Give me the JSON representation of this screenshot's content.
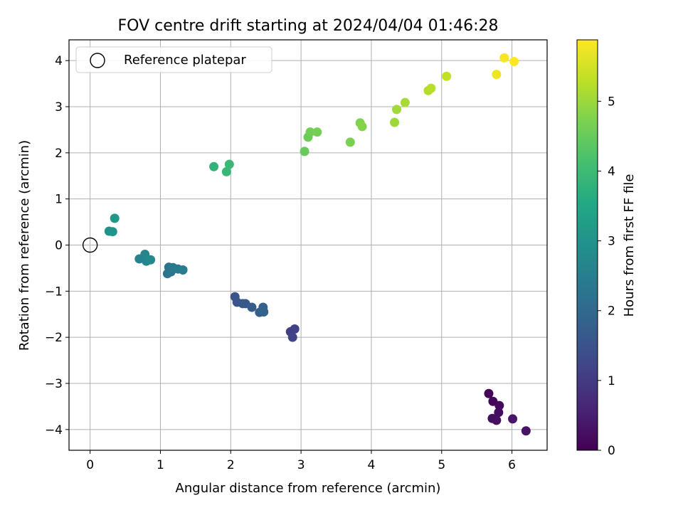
{
  "chart_data": {
    "type": "scatter",
    "title": "FOV centre drift starting at 2024/04/04 01:46:28",
    "xlabel": "Angular distance from reference (arcmin)",
    "ylabel": "Rotation from reference (arcmin)",
    "xlim": [
      -0.3,
      6.5
    ],
    "ylim": [
      -4.45,
      4.45
    ],
    "xticks": [
      0,
      1,
      2,
      3,
      4,
      5,
      6
    ],
    "yticks": [
      -4,
      -3,
      -2,
      -1,
      0,
      1,
      2,
      3,
      4
    ],
    "grid": true,
    "legend": {
      "position": "top-left",
      "entries": [
        "Reference platepar"
      ]
    },
    "reference_point": {
      "x": 0,
      "y": 0
    },
    "colorbar": {
      "label": "Hours from first FF file",
      "range": [
        0,
        5.88
      ],
      "ticks": [
        0,
        1,
        2,
        3,
        4,
        5
      ],
      "colormap": "viridis"
    },
    "points": [
      {
        "x": 5.67,
        "y": -3.22,
        "c": 0.05
      },
      {
        "x": 5.73,
        "y": -3.39,
        "c": 0.1
      },
      {
        "x": 5.82,
        "y": -3.48,
        "c": 0.15
      },
      {
        "x": 5.81,
        "y": -3.63,
        "c": 0.2
      },
      {
        "x": 5.72,
        "y": -3.76,
        "c": 0.22
      },
      {
        "x": 5.78,
        "y": -3.8,
        "c": 0.25
      },
      {
        "x": 6.01,
        "y": -3.77,
        "c": 0.35
      },
      {
        "x": 6.2,
        "y": -4.03,
        "c": 0.3
      },
      {
        "x": 2.85,
        "y": -1.88,
        "c": 1.1
      },
      {
        "x": 2.91,
        "y": -1.82,
        "c": 1.15
      },
      {
        "x": 2.88,
        "y": -2.0,
        "c": 1.2
      },
      {
        "x": 2.06,
        "y": -1.12,
        "c": 1.5
      },
      {
        "x": 2.09,
        "y": -1.24,
        "c": 1.55
      },
      {
        "x": 2.17,
        "y": -1.27,
        "c": 1.6
      },
      {
        "x": 2.21,
        "y": -1.27,
        "c": 1.65
      },
      {
        "x": 2.3,
        "y": -1.35,
        "c": 1.7
      },
      {
        "x": 2.41,
        "y": -1.46,
        "c": 1.75
      },
      {
        "x": 2.46,
        "y": -1.35,
        "c": 1.8
      },
      {
        "x": 2.47,
        "y": -1.45,
        "c": 1.85
      },
      {
        "x": 1.1,
        "y": -0.62,
        "c": 2.2
      },
      {
        "x": 1.12,
        "y": -0.48,
        "c": 2.3
      },
      {
        "x": 1.15,
        "y": -0.58,
        "c": 2.3
      },
      {
        "x": 1.18,
        "y": -0.49,
        "c": 2.35
      },
      {
        "x": 1.25,
        "y": -0.52,
        "c": 2.4
      },
      {
        "x": 1.32,
        "y": -0.54,
        "c": 2.45
      },
      {
        "x": 0.7,
        "y": -0.3,
        "c": 2.6
      },
      {
        "x": 0.78,
        "y": -0.2,
        "c": 2.65
      },
      {
        "x": 0.8,
        "y": -0.35,
        "c": 2.7
      },
      {
        "x": 0.86,
        "y": -0.32,
        "c": 2.75
      },
      {
        "x": 0.27,
        "y": 0.3,
        "c": 2.95
      },
      {
        "x": 0.32,
        "y": 0.29,
        "c": 3.0
      },
      {
        "x": 0.35,
        "y": 0.58,
        "c": 3.1
      },
      {
        "x": 1.76,
        "y": 1.7,
        "c": 3.8
      },
      {
        "x": 1.94,
        "y": 1.59,
        "c": 3.9
      },
      {
        "x": 1.98,
        "y": 1.75,
        "c": 3.95
      },
      {
        "x": 3.05,
        "y": 2.03,
        "c": 4.5
      },
      {
        "x": 3.1,
        "y": 2.34,
        "c": 4.55
      },
      {
        "x": 3.13,
        "y": 2.45,
        "c": 4.6
      },
      {
        "x": 3.23,
        "y": 2.45,
        "c": 4.65
      },
      {
        "x": 3.7,
        "y": 2.23,
        "c": 4.7
      },
      {
        "x": 3.84,
        "y": 2.65,
        "c": 4.75
      },
      {
        "x": 3.87,
        "y": 2.57,
        "c": 4.8
      },
      {
        "x": 4.33,
        "y": 2.66,
        "c": 5.0
      },
      {
        "x": 4.36,
        "y": 2.94,
        "c": 5.05
      },
      {
        "x": 4.48,
        "y": 3.09,
        "c": 5.1
      },
      {
        "x": 4.81,
        "y": 3.35,
        "c": 5.2
      },
      {
        "x": 4.85,
        "y": 3.4,
        "c": 5.25
      },
      {
        "x": 5.07,
        "y": 3.66,
        "c": 5.35
      },
      {
        "x": 5.78,
        "y": 3.7,
        "c": 5.75
      },
      {
        "x": 5.89,
        "y": 4.06,
        "c": 5.82
      },
      {
        "x": 6.03,
        "y": 3.98,
        "c": 5.88
      }
    ]
  }
}
